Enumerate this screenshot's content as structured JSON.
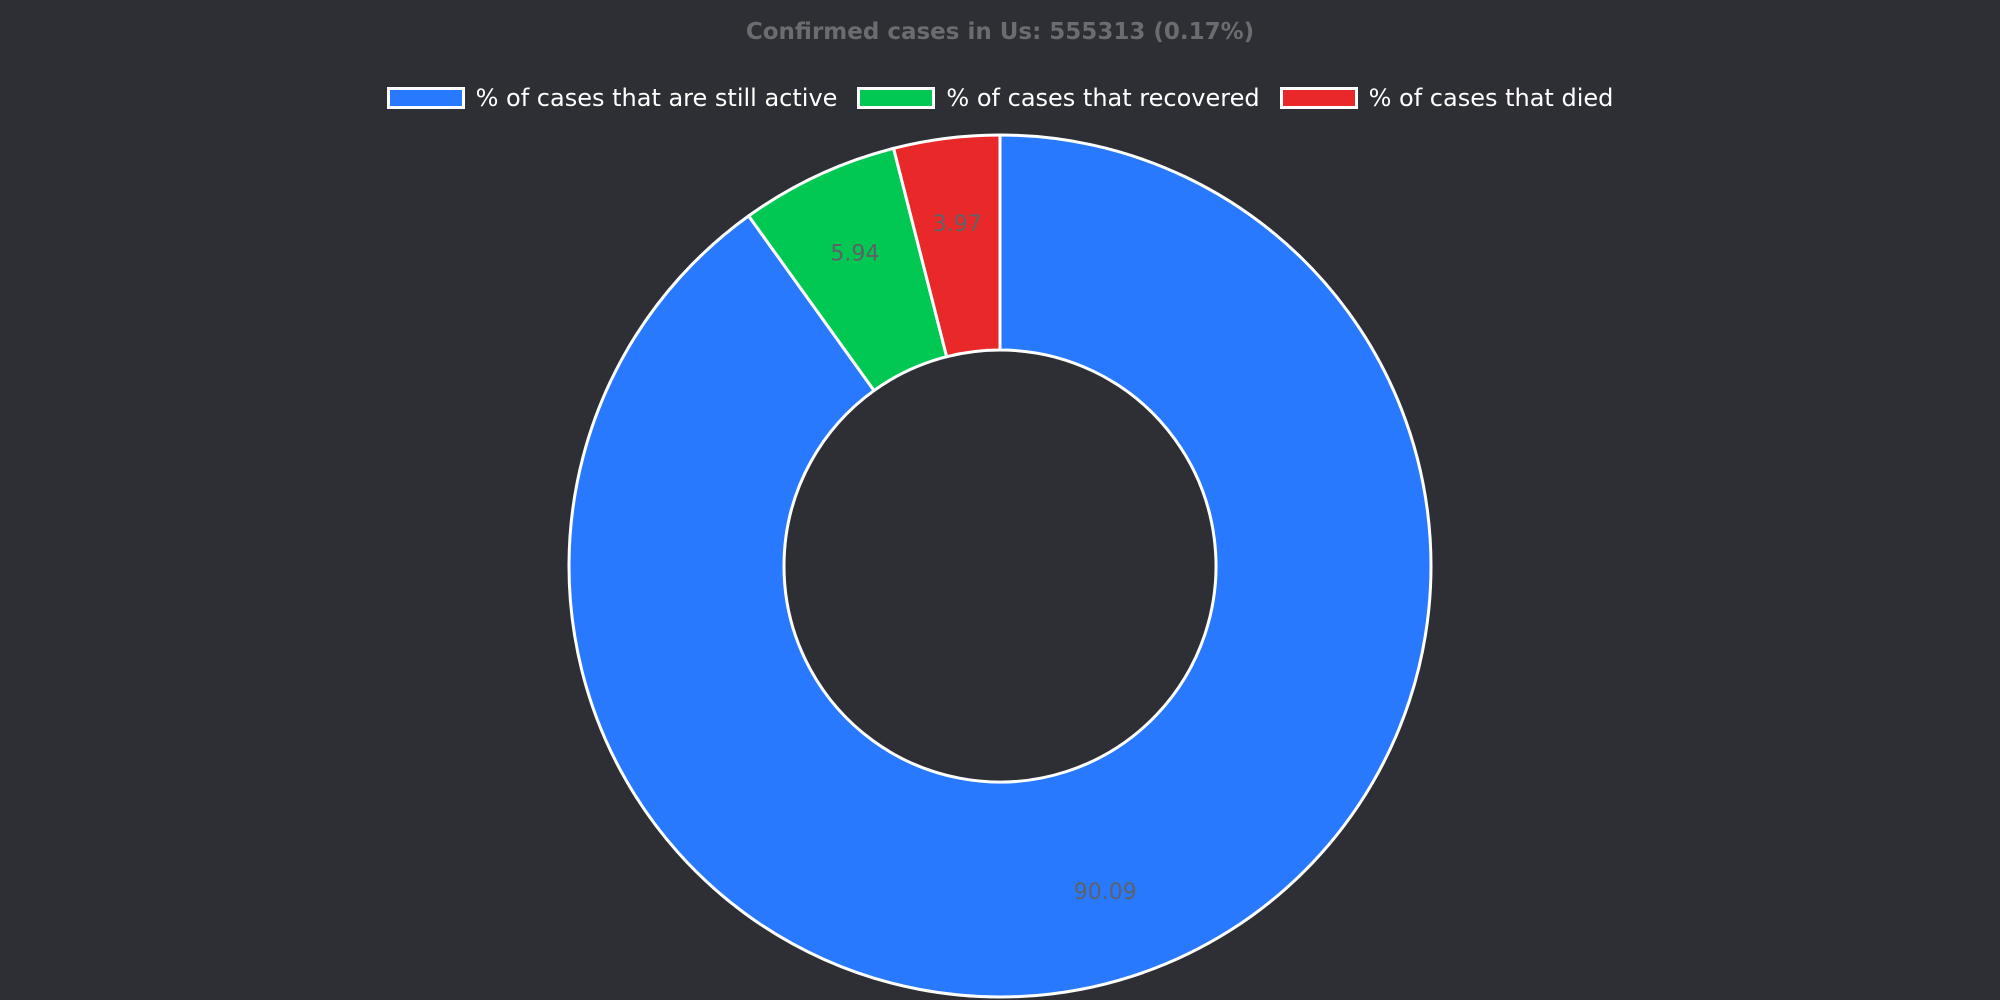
{
  "chart_data": {
    "type": "pie",
    "donut": true,
    "title": "Confirmed cases in Us: 555313 (0.17%)",
    "legend_position": "top-center",
    "categories": [
      "% of cases that are still active",
      "% of cases that recovered",
      "% of cases that died"
    ],
    "values": [
      90.09,
      5.94,
      3.97
    ],
    "labels": [
      "90.09",
      "5.94",
      "3.97"
    ],
    "colors": [
      "#2979ff",
      "#00c853",
      "#e92929"
    ],
    "slice_border_color": "#ffffff",
    "background": "#2d2f34",
    "start": "12 o'clock",
    "direction": "clockwise"
  }
}
